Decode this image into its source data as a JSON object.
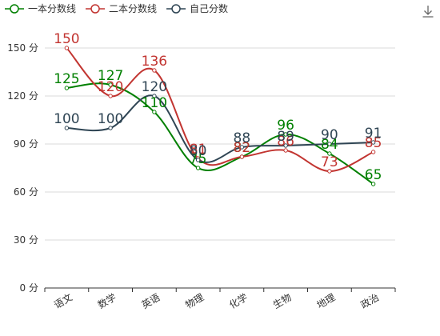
{
  "chart_data": {
    "type": "line",
    "smooth": true,
    "categories": [
      "语文",
      "数学",
      "英语",
      "物理",
      "化学",
      "生物",
      "地理",
      "政治"
    ],
    "series": [
      {
        "name": "一本分数线",
        "color": "#008000",
        "values": [
          125,
          127,
          110,
          75,
          82,
          96,
          84,
          65
        ]
      },
      {
        "name": "二本分数线",
        "color": "#c23531",
        "values": [
          150,
          120,
          136,
          81,
          82,
          86,
          73,
          85
        ]
      },
      {
        "name": "自己分数",
        "color": "#2f4554",
        "values": [
          100,
          100,
          120,
          80,
          88,
          89,
          90,
          91
        ]
      }
    ],
    "yticks": [
      "0 分",
      "30 分",
      "60 分",
      "90 分",
      "120 分",
      "150 分"
    ],
    "ylim": [
      0,
      150
    ],
    "grid": true,
    "legend_position": "top-left",
    "toolbox_icon": "download-icon"
  }
}
